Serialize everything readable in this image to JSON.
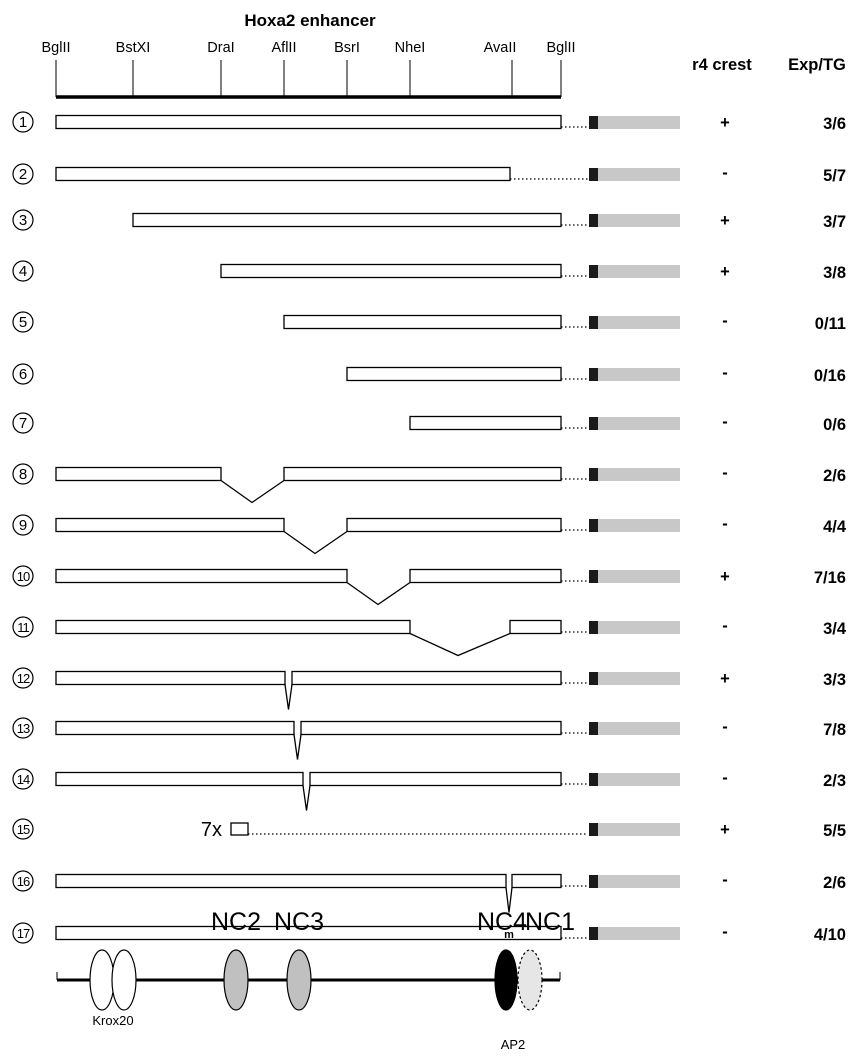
{
  "title": "Hoxa2 enhancer",
  "sites": [
    "BglII",
    "BstXI",
    "DraI",
    "AflII",
    "BsrI",
    "NheI",
    "AvaII",
    "BglII"
  ],
  "headers": {
    "crest": "r4 crest",
    "ratio": "Exp/TG"
  },
  "constructs": [
    {
      "num": "1",
      "crest": "+",
      "ratio": "3/6"
    },
    {
      "num": "2",
      "crest": "-",
      "ratio": "5/7"
    },
    {
      "num": "3",
      "crest": "+",
      "ratio": "3/7"
    },
    {
      "num": "4",
      "crest": "+",
      "ratio": "3/8"
    },
    {
      "num": "5",
      "crest": "-",
      "ratio": "0/11"
    },
    {
      "num": "6",
      "crest": "-",
      "ratio": "0/16"
    },
    {
      "num": "7",
      "crest": "-",
      "ratio": "0/6"
    },
    {
      "num": "8",
      "crest": "-",
      "ratio": "2/6"
    },
    {
      "num": "9",
      "crest": "-",
      "ratio": "4/4"
    },
    {
      "num": "10",
      "crest": "+",
      "ratio": "7/16"
    },
    {
      "num": "11",
      "crest": "-",
      "ratio": "3/4"
    },
    {
      "num": "12",
      "crest": "+",
      "ratio": "3/3"
    },
    {
      "num": "13",
      "crest": "-",
      "ratio": "7/8"
    },
    {
      "num": "14",
      "crest": "-",
      "ratio": "2/3"
    },
    {
      "num": "15",
      "crest": "+",
      "ratio": "5/5",
      "multimer": "7x"
    },
    {
      "num": "16",
      "crest": "-",
      "ratio": "2/6"
    },
    {
      "num": "17",
      "crest": "-",
      "ratio": "4/10",
      "mutation": "m"
    }
  ],
  "elements": {
    "nc2": "NC2",
    "nc3": "NC3",
    "nc4": "NC4",
    "nc1": "NC1",
    "krox20": "Krox20",
    "ap2": "AP2"
  },
  "colors": {
    "reporter": "#c8c8c8",
    "promoter": "#1a1a1a",
    "nc_gray": "#c0c0c0",
    "nc1_fill": "#e6e6e6",
    "nc4_fill": "#000000"
  }
}
